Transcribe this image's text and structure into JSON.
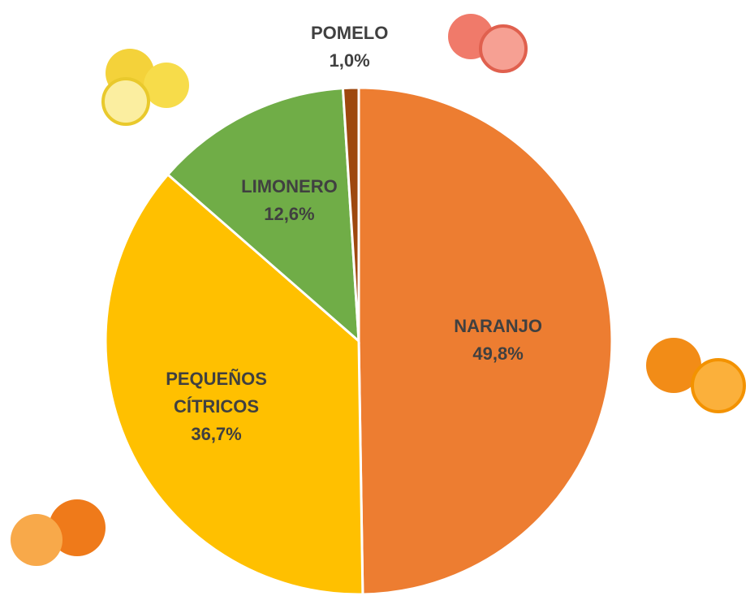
{
  "chart_data": {
    "type": "pie",
    "categories": [
      "NARANJO",
      "PEQUEÑOS CÍTRICOS",
      "LIMONERO",
      "POMELO"
    ],
    "values": [
      49.8,
      36.7,
      12.6,
      1.0
    ],
    "value_labels": [
      "49,8%",
      "36,7%",
      "12,6%",
      "1,0%"
    ],
    "colors": [
      "#ed7d31",
      "#ffc000",
      "#70ad47",
      "#9e480e"
    ]
  }
}
